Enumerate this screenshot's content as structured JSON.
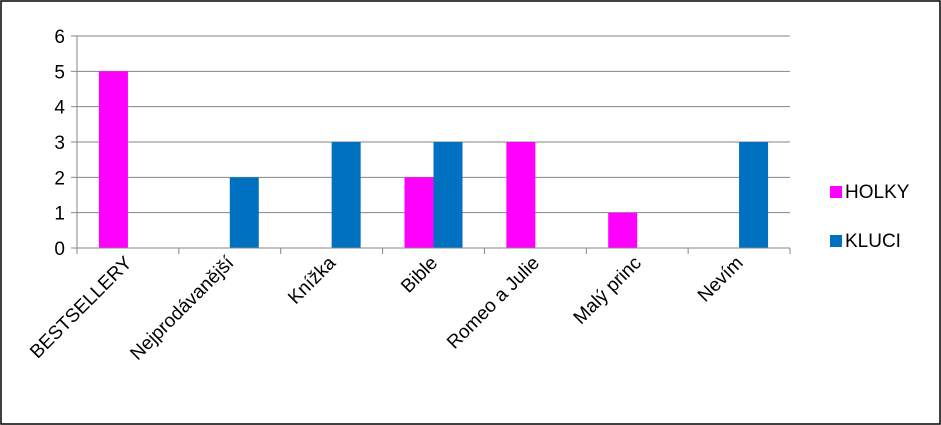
{
  "chart_data": {
    "type": "bar",
    "title": "",
    "xlabel": "",
    "ylabel": "",
    "categories": [
      "BESTSELLERY",
      "Nejprodávanější",
      "Knížka",
      "Bible",
      "Romeo a Julie",
      "Malý princ",
      "Nevím"
    ],
    "series": [
      {
        "name": "HOLKY",
        "color": "#FF00FF",
        "values": [
          5,
          0,
          0,
          2,
          3,
          1,
          0
        ]
      },
      {
        "name": "KLUCI",
        "color": "#0070C0",
        "values": [
          0,
          2,
          3,
          3,
          0,
          0,
          3
        ]
      }
    ],
    "ylim": [
      0,
      6
    ],
    "yticks": [
      0,
      1,
      2,
      3,
      4,
      5,
      6
    ],
    "grid": true,
    "legend_position": "right"
  }
}
